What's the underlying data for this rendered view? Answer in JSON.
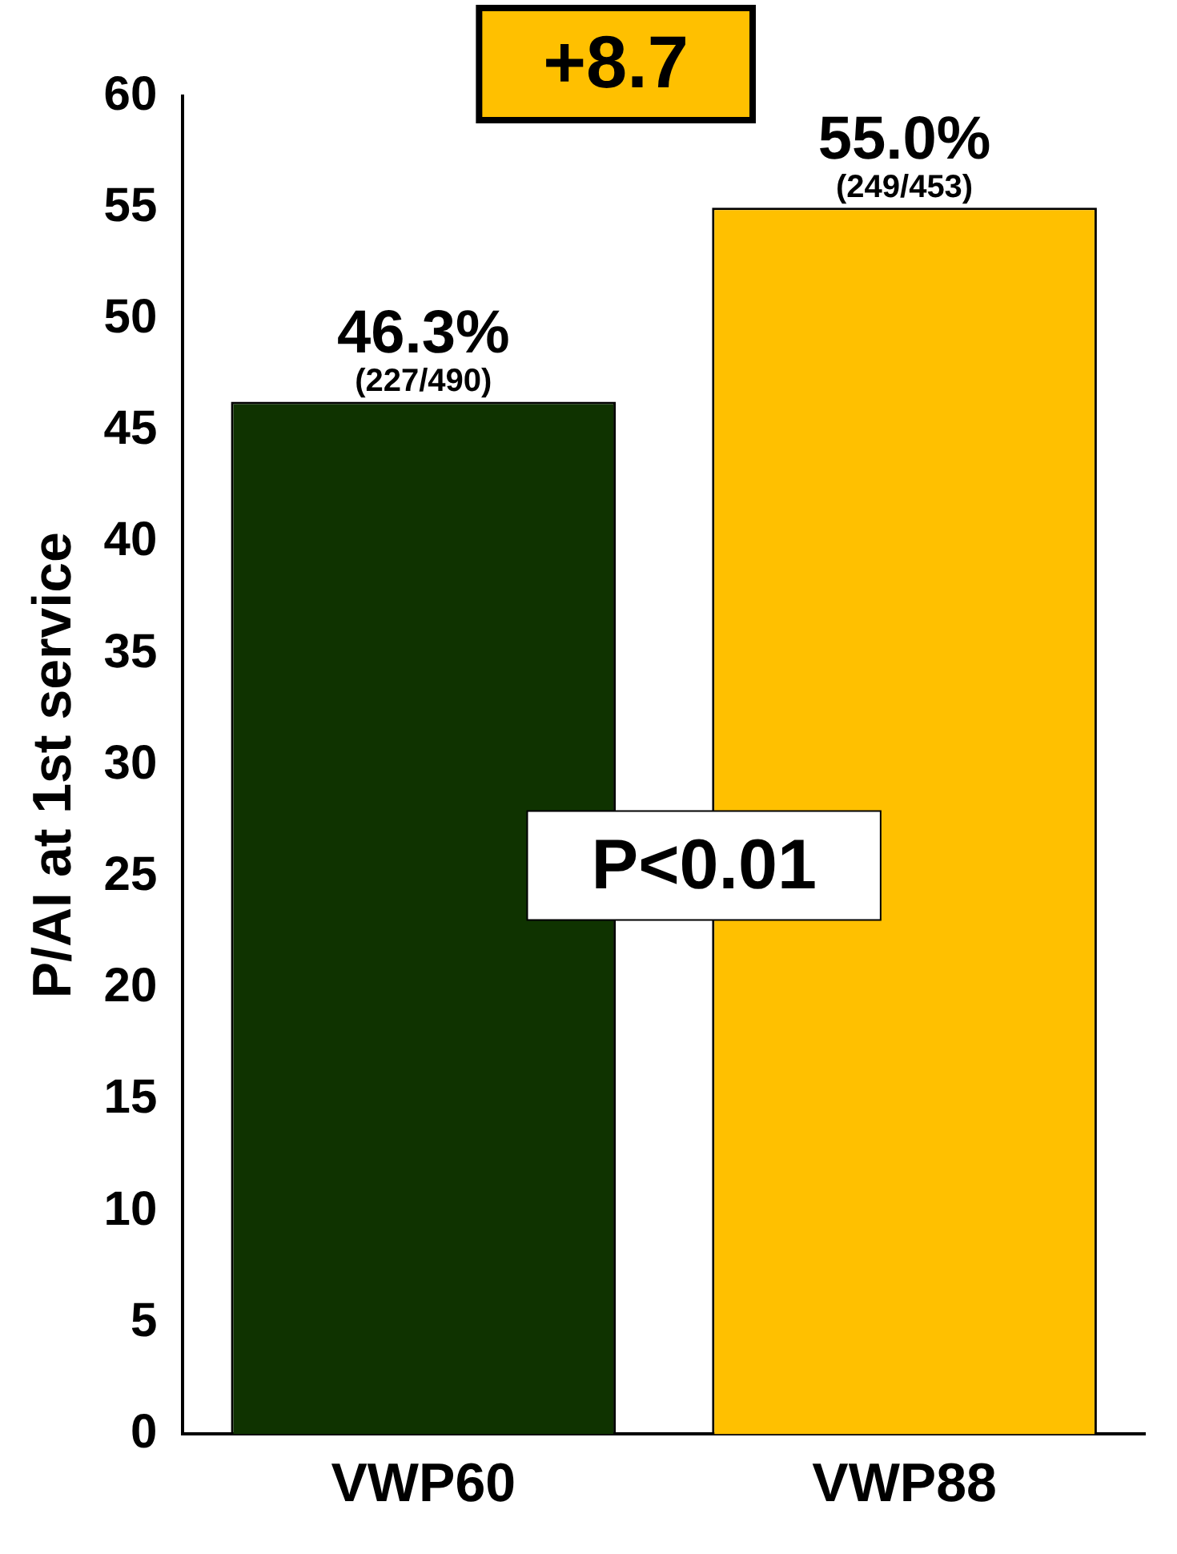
{
  "chart_data": {
    "type": "bar",
    "ylabel": "P/AI at 1st service",
    "categories": [
      "VWP60",
      "VWP88"
    ],
    "values": [
      46.3,
      55.0
    ],
    "colors": [
      "#0f3300",
      "#ffc000"
    ],
    "value_labels": [
      "46.3%",
      "55.0%"
    ],
    "annotations": [
      {
        "text": "(227/490)",
        "x": "VWP60",
        "y": 46.3
      },
      {
        "text": "(249/453)",
        "x": "VWP88",
        "y": 55.0
      },
      "+8.7",
      "P<0.01"
    ],
    "ylim": [
      0,
      60
    ],
    "yticks": [
      0,
      5,
      10,
      15,
      20,
      25,
      30,
      35,
      40,
      45,
      50,
      55,
      60
    ],
    "grid": false,
    "legend": false
  }
}
